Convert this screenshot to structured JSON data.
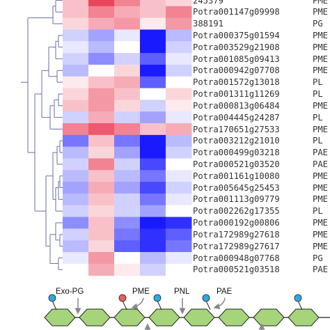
{
  "heatmap": {
    "color_scale": {
      "low": "#1a1aff",
      "mid": "#ffffff",
      "high": "#e8304a"
    },
    "rows": [
      {
        "gene": "245379",
        "family": "PME",
        "values": [
          0.3,
          0.9,
          0.6,
          0.3,
          0.2
        ]
      },
      {
        "gene": "Potra001147g09998",
        "family": "PME",
        "values": [
          0.3,
          0.6,
          0.4,
          0.3,
          0.6
        ]
      },
      {
        "gene": "388191",
        "family": "PG",
        "values": [
          0.2,
          0.4,
          0.5,
          0.1,
          0.5
        ]
      },
      {
        "gene": "Potra000375g01594",
        "family": "PME",
        "values": [
          -0.2,
          -0.4,
          -0.1,
          -1.0,
          -0.3
        ]
      },
      {
        "gene": "Potra003529g21908",
        "family": "PME",
        "values": [
          -0.1,
          -0.3,
          0.0,
          -1.0,
          -0.2
        ]
      },
      {
        "gene": "Potra001085g09413",
        "family": "PME",
        "values": [
          -0.2,
          -0.5,
          -0.2,
          -0.7,
          -0.1
        ]
      },
      {
        "gene": "Potra000942g07708",
        "family": "PME",
        "values": [
          -0.3,
          0.0,
          0.2,
          -1.0,
          -0.2
        ]
      },
      {
        "gene": "Potra001572g13018",
        "family": "PL",
        "values": [
          0.1,
          0.3,
          0.4,
          -0.7,
          0.0
        ]
      },
      {
        "gene": "Potra001311g11269",
        "family": "PL",
        "values": [
          0.2,
          0.5,
          0.3,
          0.0,
          0.2
        ]
      },
      {
        "gene": "Potra000813g06484",
        "family": "PME",
        "values": [
          0.3,
          0.5,
          0.2,
          -0.2,
          0.1
        ]
      },
      {
        "gene": "Potra004445g24287",
        "family": "PL",
        "values": [
          -0.2,
          0.4,
          -0.2,
          -0.4,
          -0.1
        ]
      },
      {
        "gene": "Potra170651g27533",
        "family": "PME",
        "values": [
          0.6,
          0.8,
          0.6,
          0.3,
          0.4
        ]
      },
      {
        "gene": "Potra003212g21010",
        "family": "PL",
        "values": [
          -0.6,
          0.3,
          -0.6,
          -1.0,
          -0.3
        ]
      },
      {
        "gene": "Potra000499g03218",
        "family": "PAE",
        "values": [
          -0.3,
          0.2,
          -0.4,
          -1.0,
          -0.2
        ]
      },
      {
        "gene": "Potra000521g03520",
        "family": "PAE",
        "values": [
          -0.2,
          0.6,
          -0.2,
          -0.8,
          0.0
        ]
      },
      {
        "gene": "Potra001161g10080",
        "family": "PME",
        "values": [
          -0.3,
          0.3,
          -0.3,
          -0.6,
          -0.1
        ]
      },
      {
        "gene": "Potra005645g25453",
        "family": "PME",
        "values": [
          -0.4,
          0.4,
          -0.4,
          -0.8,
          -0.2
        ]
      },
      {
        "gene": "Potra001113g09779",
        "family": "PME",
        "values": [
          -0.3,
          0.3,
          -0.2,
          -0.6,
          -0.1
        ]
      },
      {
        "gene": "Potra002262g17355",
        "family": "PL",
        "values": [
          -0.2,
          0.2,
          -0.2,
          -0.4,
          0.0
        ]
      },
      {
        "gene": "Potra000192g00806",
        "family": "PME",
        "values": [
          -0.5,
          0.3,
          -0.5,
          -1.0,
          -0.9
        ]
      },
      {
        "gene": "Potra172989g27618",
        "family": "PME",
        "values": [
          -0.2,
          0.3,
          -0.6,
          -0.9,
          -0.7
        ]
      },
      {
        "gene": "Potra172989g27617",
        "family": "PME",
        "values": [
          -0.3,
          0.2,
          -0.7,
          -0.9,
          -0.6
        ]
      },
      {
        "gene": "Potra000948g07768",
        "family": "PG",
        "values": [
          -0.1,
          0.5,
          0.0,
          -0.3,
          -0.1
        ]
      },
      {
        "gene": "Potra000521g03518",
        "family": "PAE",
        "values": [
          0.0,
          0.4,
          0.1,
          -0.2,
          0.0
        ]
      }
    ]
  },
  "pectin_diagram": {
    "enzymes": [
      {
        "label": "Exo-PG"
      },
      {
        "label": "PME"
      },
      {
        "label": "PNL"
      },
      {
        "label": "PAE"
      }
    ],
    "colors": {
      "sugar_ring": "#a6d47a",
      "methyl_group": "#e8605a",
      "acetyl_group": "#2ea8e0"
    }
  }
}
